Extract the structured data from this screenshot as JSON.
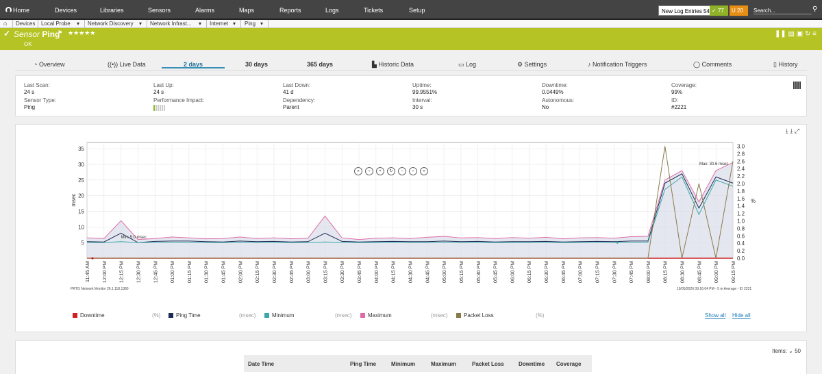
{
  "topnav": {
    "items": [
      "Home",
      "Devices",
      "Libraries",
      "Sensors",
      "Alarms",
      "Maps",
      "Reports",
      "Logs",
      "Tickets",
      "Setup"
    ],
    "new_log_label": "New Log Entries",
    "new_log_count": "54",
    "badge_ok": "77",
    "badge_warn": "20",
    "badge_warn_letter": "U",
    "search_label": "Search..."
  },
  "breadcrumb": [
    "Devices",
    "Local Probe",
    "Network Discovery",
    "Network Infrast...",
    "Internet",
    "Ping"
  ],
  "sensor": {
    "kind": "Sensor",
    "name": "Ping",
    "stars": "★★★★★",
    "status": "OK"
  },
  "tabs": [
    {
      "label": "Overview",
      "icon": "clock-icon"
    },
    {
      "label": "Live Data",
      "icon": "live-icon"
    },
    {
      "label": "2  days",
      "icon": ""
    },
    {
      "label": "30  days",
      "icon": ""
    },
    {
      "label": "365  days",
      "icon": ""
    },
    {
      "label": "Historic Data",
      "icon": "chart-icon"
    },
    {
      "label": "Log",
      "icon": "log-icon"
    },
    {
      "label": "Settings",
      "icon": "gear-icon"
    },
    {
      "label": "Notification Triggers",
      "icon": "bell-icon"
    },
    {
      "label": "Comments",
      "icon": "comment-icon"
    },
    {
      "label": "History",
      "icon": "history-icon"
    }
  ],
  "info": {
    "last_scan": {
      "k": "Last Scan:",
      "v": "24 s"
    },
    "last_up": {
      "k": "Last Up:",
      "v": "24 s"
    },
    "last_down": {
      "k": "Last Down:",
      "v": "41 d"
    },
    "uptime": {
      "k": "Uptime:",
      "v": "99.9551%"
    },
    "downtime": {
      "k": "Downtime:",
      "v": "0.0449%"
    },
    "coverage": {
      "k": "Coverage:",
      "v": "99%"
    },
    "sensor_type": {
      "k": "Sensor Type:",
      "v": "Ping"
    },
    "perf_impact": {
      "k": "Performance Impact:"
    },
    "dependency": {
      "k": "Dependency:",
      "v": "Parent"
    },
    "interval": {
      "k": "Interval:",
      "v": "30 s"
    },
    "autonomous": {
      "k": "Autonomous:",
      "v": "No"
    },
    "id": {
      "k": "ID:",
      "v": "#2221"
    }
  },
  "chart_data": {
    "type": "line",
    "ylabel": "msec",
    "y2label": "%",
    "ylim": [
      0,
      37
    ],
    "y2lim": [
      0,
      3.1
    ],
    "yticks": [
      5,
      10,
      15,
      20,
      25,
      30,
      35
    ],
    "y2ticks": [
      "0.0",
      "0.2",
      "0.4",
      "0.6",
      "0.8",
      "1.0",
      "1.2",
      "1.4",
      "1.6",
      "1.8",
      "2.0",
      "2.2",
      "2.4",
      "2.6",
      "2.8",
      "3.0"
    ],
    "x": [
      "11:45 AM",
      "12:00 PM",
      "12:15 PM",
      "12:30 PM",
      "12:45 PM",
      "01:00 PM",
      "01:15 PM",
      "01:30 PM",
      "01:45 PM",
      "02:00 PM",
      "02:15 PM",
      "02:30 PM",
      "02:45 PM",
      "03:00 PM",
      "03:15 PM",
      "03:30 PM",
      "03:45 PM",
      "04:00 PM",
      "04:15 PM",
      "04:30 PM",
      "04:45 PM",
      "05:00 PM",
      "05:15 PM",
      "05:30 PM",
      "05:45 PM",
      "06:00 PM",
      "06:15 PM",
      "06:30 PM",
      "06:45 PM",
      "07:00 PM",
      "07:15 PM",
      "07:30 PM",
      "07:45 PM",
      "08:00 PM",
      "08:15 PM",
      "08:30 PM",
      "08:45 PM",
      "09:00 PM",
      "09:15 PM"
    ],
    "series": [
      {
        "name": "Downtime",
        "unit": "(%)",
        "color": "#cc2222",
        "axis": "y2",
        "values": [
          0,
          0,
          0,
          0,
          0,
          0,
          0,
          0,
          0,
          0,
          0,
          0,
          0,
          0,
          0,
          0,
          0,
          0,
          0,
          0,
          0,
          0,
          0,
          0,
          0,
          0,
          0,
          0,
          0,
          0,
          0,
          0,
          0,
          0,
          0,
          0,
          0,
          0,
          0
        ]
      },
      {
        "name": "Ping Time",
        "unit": "(msec)",
        "color": "#1c2a55",
        "axis": "y",
        "values": [
          5.3,
          5.2,
          8.0,
          5.0,
          5.4,
          5.5,
          5.5,
          5.3,
          5.2,
          5.5,
          5.3,
          5.4,
          5.2,
          5.3,
          8.0,
          5.4,
          5.2,
          5.3,
          5.4,
          5.3,
          5.3,
          5.5,
          5.3,
          5.4,
          5.2,
          5.3,
          5.3,
          5.4,
          5.2,
          5.3,
          5.4,
          5.3,
          5.5,
          5.5,
          24,
          27,
          16,
          26,
          24
        ]
      },
      {
        "name": "Minimum",
        "unit": "(msec)",
        "color": "#3aa8a8",
        "axis": "y",
        "values": [
          5.0,
          5.0,
          5.3,
          5.0,
          5.1,
          5.1,
          5.0,
          5.0,
          5.0,
          5.1,
          5.0,
          5.0,
          5.0,
          5.0,
          5.2,
          5.1,
          5.0,
          5.0,
          5.1,
          5.0,
          5.0,
          5.1,
          5.0,
          5.0,
          5.0,
          5.0,
          5.0,
          5.0,
          5.0,
          5.0,
          5.0,
          5.0,
          5.1,
          5.1,
          22,
          26,
          14,
          25,
          23
        ]
      },
      {
        "name": "Maximum",
        "unit": "(msec)",
        "color": "#e06aa8",
        "axis": "y",
        "values": [
          6.5,
          6.3,
          12,
          6.0,
          6.3,
          6.8,
          6.5,
          6.2,
          6.3,
          6.8,
          6.3,
          6.5,
          6.2,
          6.4,
          13.5,
          6.5,
          6.0,
          6.4,
          6.5,
          6.3,
          6.7,
          7.0,
          6.5,
          6.6,
          6.3,
          6.6,
          6.4,
          6.7,
          6.2,
          6.5,
          6.6,
          6.4,
          6.9,
          7.0,
          25,
          28,
          18,
          28,
          30.6
        ]
      },
      {
        "name": "Packet Loss",
        "unit": "(%)",
        "color": "#8a7a4a",
        "axis": "y2",
        "values": [
          0,
          0,
          0,
          0,
          0,
          0,
          0,
          0,
          0,
          0,
          0,
          0,
          0,
          0,
          0,
          0,
          0,
          0,
          0,
          0,
          0,
          0,
          0,
          0,
          0,
          0,
          0,
          0,
          0,
          0,
          0,
          0,
          0,
          0,
          3.0,
          0,
          2.0,
          0,
          2.6
        ]
      }
    ],
    "annotations": [
      "Min: 5.0 msec",
      "Max: 30.6 msec"
    ]
  },
  "chart_footer": {
    "left": "PRTG Network Monitor 26.1.118.1380",
    "right": "19/05/2026 09:16:04 PM - 5 m Average - ID 2221"
  },
  "chart_nav": [
    "«",
    "‹",
    "+",
    "↻",
    "−",
    "›",
    "»"
  ],
  "legend_actions": {
    "show": "Show all",
    "hide": "Hide all"
  },
  "table": {
    "items_label": "Items:",
    "items_value": "50",
    "columns": [
      "Date Time",
      "Ping Time",
      "Minimum",
      "Maximum",
      "Packet Loss",
      "Downtime",
      "Coverage"
    ]
  }
}
